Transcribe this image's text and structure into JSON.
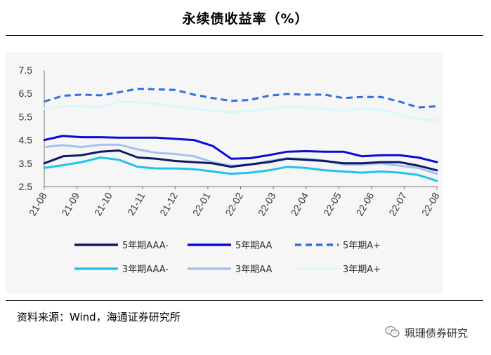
{
  "header": {
    "title": "永续债收益率（%）"
  },
  "footer": {
    "source": "资料来源：Wind，海通证券研究所",
    "watermark": "珮珊债券研究"
  },
  "chart_data": {
    "type": "line",
    "title": "永续债收益率（%）",
    "xlabel": "",
    "ylabel": "",
    "ylim": [
      2.5,
      7.5
    ],
    "yticks": [
      "7.5",
      "6.5",
      "5.5",
      "4.5",
      "3.5",
      "2.5"
    ],
    "xticks": [
      "21-08",
      "21-09",
      "21-10",
      "21-11",
      "21-12",
      "22-01",
      "22-02",
      "22-03",
      "22-04",
      "22-05",
      "22-06",
      "22-07",
      "22-08"
    ],
    "legend_position": "bottom",
    "series": [
      {
        "name": "5年期AAA-",
        "color": "#0d1a63",
        "style": "solid",
        "values": [
          3.5,
          3.8,
          3.85,
          4.0,
          4.05,
          3.75,
          3.7,
          3.6,
          3.55,
          3.5,
          3.35,
          3.45,
          3.55,
          3.7,
          3.65,
          3.6,
          3.5,
          3.5,
          3.55,
          3.55,
          3.4,
          3.2
        ]
      },
      {
        "name": "5年期AA",
        "color": "#0a0ad6",
        "style": "solid",
        "values": [
          4.5,
          4.68,
          4.62,
          4.62,
          4.6,
          4.6,
          4.6,
          4.55,
          4.5,
          4.25,
          3.7,
          3.72,
          3.85,
          4.0,
          4.02,
          4.0,
          4.0,
          3.8,
          3.85,
          3.85,
          3.75,
          3.55
        ]
      },
      {
        "name": "5年期A+",
        "color": "#2f6fe0",
        "style": "dashed",
        "values": [
          6.15,
          6.4,
          6.45,
          6.42,
          6.55,
          6.7,
          6.68,
          6.65,
          6.45,
          6.3,
          6.18,
          6.22,
          6.4,
          6.48,
          6.45,
          6.45,
          6.3,
          6.35,
          6.35,
          6.15,
          5.9,
          5.95
        ]
      },
      {
        "name": "3年期AAA-",
        "color": "#1ec4ea",
        "style": "solid",
        "values": [
          3.3,
          3.42,
          3.55,
          3.75,
          3.65,
          3.35,
          3.28,
          3.28,
          3.25,
          3.15,
          3.05,
          3.1,
          3.2,
          3.35,
          3.3,
          3.2,
          3.15,
          3.1,
          3.15,
          3.1,
          3.0,
          2.75
        ]
      },
      {
        "name": "3年期AA",
        "color": "#a3c3ee",
        "style": "solid",
        "values": [
          4.2,
          4.28,
          4.2,
          4.3,
          4.3,
          4.1,
          3.95,
          3.9,
          3.8,
          3.55,
          3.4,
          3.45,
          3.6,
          3.72,
          3.7,
          3.62,
          3.45,
          3.45,
          3.5,
          3.4,
          3.3,
          3.05
        ]
      },
      {
        "name": "3年期A+",
        "color": "#d7f8fb",
        "style": "solid",
        "values": [
          5.85,
          5.95,
          5.95,
          5.92,
          6.15,
          6.12,
          6.05,
          5.95,
          5.85,
          5.75,
          5.7,
          5.75,
          5.85,
          5.95,
          5.9,
          5.85,
          5.75,
          5.85,
          5.8,
          5.6,
          5.4,
          5.35
        ]
      }
    ]
  }
}
